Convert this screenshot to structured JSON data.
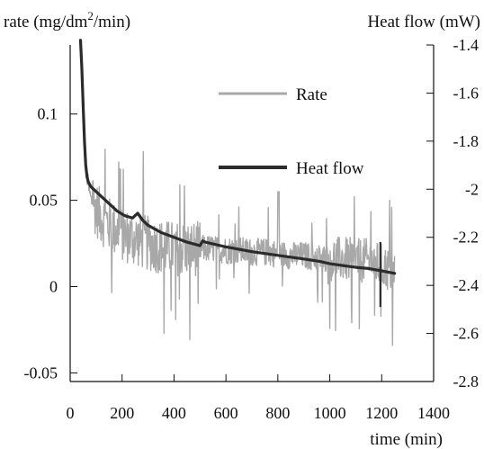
{
  "chart_data": {
    "type": "line",
    "title": "",
    "x_axis": {
      "label": "time (min)",
      "range": [
        0,
        1400
      ],
      "ticks": [
        0,
        200,
        400,
        600,
        800,
        1000,
        1200,
        1400
      ]
    },
    "y_left": {
      "label_main": "rate (mg/dm",
      "label_sup": "2",
      "label_tail": "/min)",
      "range": [
        -0.055,
        0.14
      ],
      "ticks": [
        -0.05,
        0,
        0.05,
        0.1
      ],
      "tick_labels": [
        "-0.05",
        "0",
        "0.05",
        "0.1"
      ]
    },
    "y_right": {
      "label": "Heat flow (mW)",
      "range": [
        -2.8,
        -1.4
      ],
      "ticks": [
        -2.8,
        -2.6,
        -2.4,
        -2.2,
        -2,
        -1.8,
        -1.6,
        -1.4
      ],
      "tick_labels": [
        "-2.8",
        "-2.6",
        "-2.4",
        "-2.2",
        "-2",
        "-1.8",
        "-1.6",
        "-1.4"
      ]
    },
    "grid": false,
    "legend_position": "top-right",
    "series": [
      {
        "name": "Rate",
        "color": "#a8a8a8",
        "axis": "left",
        "noisy": true,
        "x": [
          40,
          45,
          50,
          55,
          60,
          70,
          80,
          100,
          120,
          150,
          180,
          220,
          260,
          300,
          350,
          400,
          450,
          500,
          550,
          600,
          650,
          700,
          750,
          800,
          850,
          900,
          950,
          1000,
          1050,
          1100,
          1150,
          1200,
          1250
        ],
        "y": [
          0.14,
          0.12,
          0.1,
          0.085,
          0.07,
          0.058,
          0.05,
          0.045,
          0.04,
          0.036,
          0.032,
          0.029,
          0.027,
          0.025,
          0.023,
          0.022,
          0.022,
          0.022,
          0.022,
          0.021,
          0.021,
          0.02,
          0.02,
          0.019,
          0.018,
          0.018,
          0.017,
          0.016,
          0.016,
          0.015,
          0.015,
          0.012,
          0.008
        ]
      },
      {
        "name": "Heat flow",
        "color": "#2b2b2b",
        "axis": "right",
        "noisy": false,
        "x": [
          40,
          45,
          50,
          55,
          60,
          65,
          70,
          80,
          100,
          120,
          150,
          180,
          210,
          240,
          260,
          280,
          300,
          350,
          400,
          450,
          500,
          510,
          520,
          600,
          700,
          800,
          900,
          960,
          1000,
          1100,
          1150,
          1200,
          1250
        ],
        "y": [
          -1.38,
          -1.5,
          -1.65,
          -1.8,
          -1.9,
          -1.95,
          -1.97,
          -1.99,
          -2.01,
          -2.03,
          -2.06,
          -2.09,
          -2.11,
          -2.12,
          -2.1,
          -2.13,
          -2.15,
          -2.18,
          -2.2,
          -2.22,
          -2.235,
          -2.215,
          -2.22,
          -2.24,
          -2.26,
          -2.275,
          -2.29,
          -2.3,
          -2.31,
          -2.325,
          -2.33,
          -2.34,
          -2.35
        ]
      }
    ],
    "annotations": {
      "vertical_marker": {
        "x": 1195,
        "y_top": -2.22,
        "y_bottom": -2.49,
        "axis": "right"
      }
    }
  }
}
